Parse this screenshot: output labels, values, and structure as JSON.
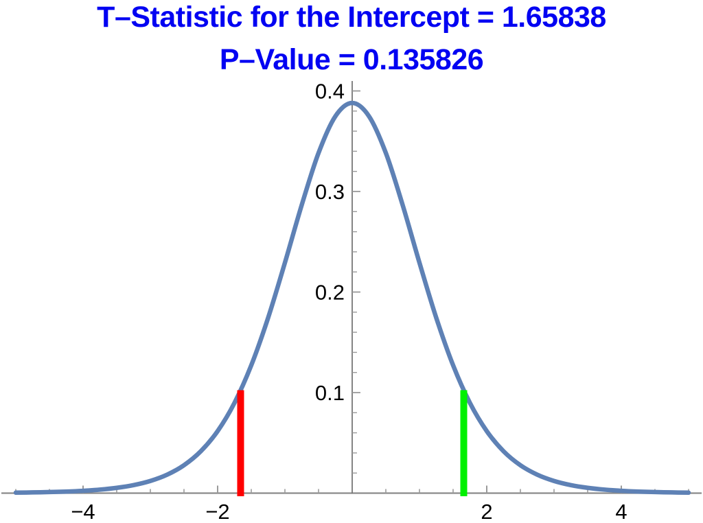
{
  "chart_data": {
    "type": "line",
    "title": "T–Statistic for the Intercept = 1.65838",
    "subtitle": "P–Value = 0.135826",
    "title_color": "#0202F2",
    "t_statistic": 1.65838,
    "p_value": 0.135826,
    "distribution": "Student t probability density (df = 9), bell curve centered at 0",
    "x_range": [
      -5,
      5
    ],
    "y_range": [
      0,
      0.41
    ],
    "x_major_ticks": [
      {
        "value": -4,
        "label": "−4"
      },
      {
        "value": -2,
        "label": "−2"
      },
      {
        "value": 2,
        "label": "2"
      },
      {
        "value": 4,
        "label": "4"
      }
    ],
    "x_minor_step": 0.5,
    "y_major_ticks": [
      {
        "value": 0.1,
        "label": "0.1"
      },
      {
        "value": 0.2,
        "label": "0.2"
      },
      {
        "value": 0.3,
        "label": "0.3"
      },
      {
        "value": 0.4,
        "label": "0.4"
      }
    ],
    "y_minor_step": 0.02,
    "curve_color": "#5E81B5",
    "axis_color": "#8A8A8A",
    "tick_color": "#9A9A9A",
    "label_color": "#000000",
    "grid": "off",
    "legend": "none",
    "curve": {
      "x": [
        -5,
        -4.75,
        -4.5,
        -4.25,
        -4,
        -3.75,
        -3.5,
        -3.25,
        -3,
        -2.75,
        -2.5,
        -2.25,
        -2,
        -1.75,
        -1.5,
        -1.25,
        -1,
        -0.75,
        -0.5,
        -0.25,
        0,
        0.25,
        0.5,
        0.75,
        1,
        1.25,
        1.5,
        1.75,
        2,
        2.25,
        2.5,
        2.75,
        3,
        3.25,
        3.5,
        3.75,
        4,
        4.25,
        4.5,
        4.75,
        5
      ],
      "y": [
        0.000505,
        0.000732,
        0.00107,
        0.001577,
        0.002346,
        0.003509,
        0.005288,
        0.007988,
        0.012126,
        0.018385,
        0.02778,
        0.04166,
        0.06171,
        0.08972,
        0.127147,
        0.174277,
        0.229129,
        0.286556,
        0.338349,
        0.374825,
        0.388035,
        0.374825,
        0.338349,
        0.286556,
        0.229129,
        0.174277,
        0.127147,
        0.08972,
        0.06171,
        0.04166,
        0.02778,
        0.018385,
        0.012126,
        0.007988,
        0.005288,
        0.003509,
        0.002346,
        0.001577,
        0.00107,
        0.000732,
        0.000505
      ]
    },
    "critical_lines": [
      {
        "x": -1.65838,
        "height": 0.10236,
        "color": "#FF0000",
        "name": "lower-critical-line"
      },
      {
        "x": 1.65838,
        "height": 0.10236,
        "color": "#00F000",
        "name": "upper-critical-line"
      }
    ]
  }
}
